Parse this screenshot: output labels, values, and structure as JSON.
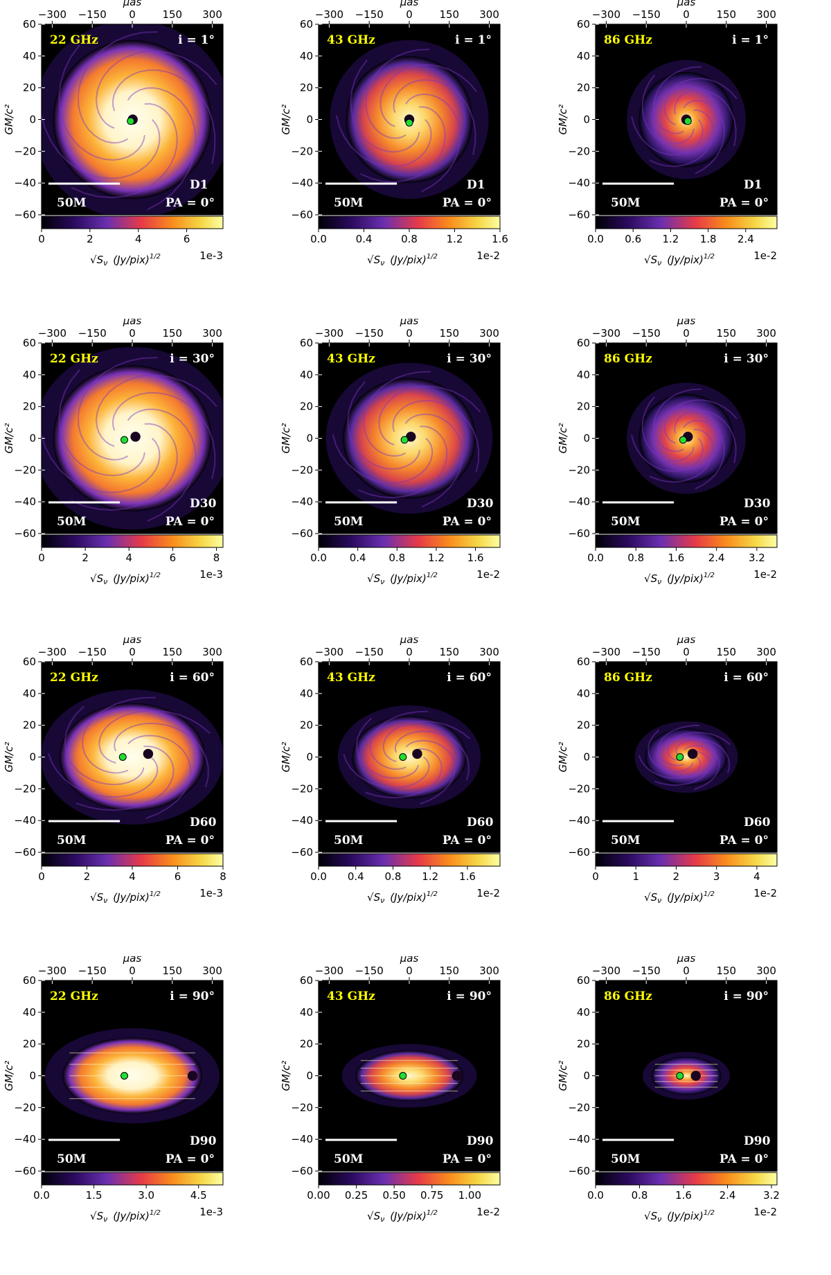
{
  "figure": {
    "top_axis_label": "μas",
    "left_axis_label": "GM/c²",
    "colorbar_label_sqrt": "√S",
    "colorbar_label_nu": "ν",
    "colorbar_label_units": "(Jy/pix)",
    "colorbar_label_exp": "1/2",
    "scale_bar_label": "50M",
    "pa_label": "PA = 0°",
    "colors": {
      "background": "#000000",
      "marker": "#22dd33",
      "freq_text": "#ffff00",
      "info_text": "#ffffff"
    }
  },
  "chart_data": [
    {
      "type": "heatmap",
      "freq": "22 GHz",
      "incl": "i = 1°",
      "model": "D1",
      "pa": "PA = 0°",
      "x_ticks": [
        "−300",
        "−150",
        "0",
        "150",
        "300"
      ],
      "x_range_uas": [
        -340,
        340
      ],
      "y_ticks": [
        "60",
        "40",
        "20",
        "0",
        "−20",
        "−40",
        "−60"
      ],
      "y_range": [
        -60,
        60
      ],
      "cbar_ticks": [
        "0",
        "2",
        "4",
        "6"
      ],
      "cbar_exp": "1e-3",
      "cbar_range": [
        0,
        7.5
      ],
      "disk": {
        "rx": 50,
        "ry": 50,
        "rot": 1
      },
      "shadow": {
        "x": 0.3,
        "y": 0
      },
      "marker": {
        "x": -1,
        "y": -1
      },
      "brightness": "high"
    },
    {
      "type": "heatmap",
      "freq": "43 GHz",
      "incl": "i = 1°",
      "model": "D1",
      "pa": "PA = 0°",
      "x_ticks": [
        "−300",
        "−150",
        "0",
        "150",
        "300"
      ],
      "x_range_uas": [
        -340,
        340
      ],
      "y_ticks": [
        "60",
        "40",
        "20",
        "0",
        "−20",
        "−40",
        "−60"
      ],
      "y_range": [
        -60,
        60
      ],
      "cbar_ticks": [
        "0.0",
        "0.4",
        "0.8",
        "1.2",
        "1.6"
      ],
      "cbar_exp": "1e-2",
      "cbar_range": [
        0,
        1.6
      ],
      "disk": {
        "rx": 40,
        "ry": 40,
        "rot": 1
      },
      "shadow": {
        "x": 0,
        "y": 0
      },
      "marker": {
        "x": 0,
        "y": -2
      },
      "brightness": "mid"
    },
    {
      "type": "heatmap",
      "freq": "86 GHz",
      "incl": "i = 1°",
      "model": "D1",
      "pa": "PA = 0°",
      "x_ticks": [
        "−300",
        "−150",
        "0",
        "150",
        "300"
      ],
      "x_range_uas": [
        -340,
        340
      ],
      "y_ticks": [
        "60",
        "40",
        "20",
        "0",
        "−20",
        "−40",
        "−60"
      ],
      "y_range": [
        -60,
        60
      ],
      "cbar_ticks": [
        "0.0",
        "0.6",
        "1.2",
        "1.8",
        "2.4"
      ],
      "cbar_exp": "1e-2",
      "cbar_range": [
        0,
        2.9
      ],
      "disk": {
        "rx": 30,
        "ry": 30,
        "rot": 1
      },
      "shadow": {
        "x": 0,
        "y": 0
      },
      "marker": {
        "x": 1,
        "y": -1
      },
      "brightness": "low"
    },
    {
      "type": "heatmap",
      "freq": "22 GHz",
      "incl": "i = 30°",
      "model": "D30",
      "pa": "PA = 0°",
      "x_ticks": [
        "−300",
        "−150",
        "0",
        "150",
        "300"
      ],
      "x_range_uas": [
        -340,
        340
      ],
      "y_ticks": [
        "60",
        "40",
        "20",
        "0",
        "−20",
        "−40",
        "−60"
      ],
      "y_range": [
        -60,
        60
      ],
      "cbar_ticks": [
        "0",
        "2",
        "4",
        "6",
        "8"
      ],
      "cbar_exp": "1e-3",
      "cbar_range": [
        0,
        8.3
      ],
      "disk": {
        "rx": 50,
        "ry": 46,
        "rot": 1
      },
      "shadow": {
        "x": 2,
        "y": 1
      },
      "marker": {
        "x": -5,
        "y": -1
      },
      "brightness": "high"
    },
    {
      "type": "heatmap",
      "freq": "43 GHz",
      "incl": "i = 30°",
      "model": "D30",
      "pa": "PA = 0°",
      "x_ticks": [
        "−300",
        "−150",
        "0",
        "150",
        "300"
      ],
      "x_range_uas": [
        -340,
        340
      ],
      "y_ticks": [
        "60",
        "40",
        "20",
        "0",
        "−20",
        "−40",
        "−60"
      ],
      "y_range": [
        -60,
        60
      ],
      "cbar_ticks": [
        "0.0",
        "0.4",
        "0.8",
        "1.2",
        "1.6"
      ],
      "cbar_exp": "1e-2",
      "cbar_range": [
        0,
        1.85
      ],
      "disk": {
        "rx": 42,
        "ry": 38,
        "rot": 1
      },
      "shadow": {
        "x": 1,
        "y": 1
      },
      "marker": {
        "x": -3,
        "y": -1
      },
      "brightness": "mid"
    },
    {
      "type": "heatmap",
      "freq": "86 GHz",
      "incl": "i = 30°",
      "model": "D30",
      "pa": "PA = 0°",
      "x_ticks": [
        "−300",
        "−150",
        "0",
        "150",
        "300"
      ],
      "x_range_uas": [
        -340,
        340
      ],
      "y_ticks": [
        "60",
        "40",
        "20",
        "0",
        "−20",
        "−40",
        "−60"
      ],
      "y_range": [
        -60,
        60
      ],
      "cbar_ticks": [
        "0.0",
        "0.8",
        "1.6",
        "2.4",
        "3.2"
      ],
      "cbar_exp": "1e-2",
      "cbar_range": [
        0,
        3.6
      ],
      "disk": {
        "rx": 30,
        "ry": 28,
        "rot": 1
      },
      "shadow": {
        "x": 1,
        "y": 1
      },
      "marker": {
        "x": -2,
        "y": -1
      },
      "brightness": "low"
    },
    {
      "type": "heatmap",
      "freq": "22 GHz",
      "incl": "i = 60°",
      "model": "D60",
      "pa": "PA = 0°",
      "x_ticks": [
        "−300",
        "−150",
        "0",
        "150",
        "300"
      ],
      "x_range_uas": [
        -340,
        340
      ],
      "y_ticks": [
        "60",
        "40",
        "20",
        "0",
        "−20",
        "−40",
        "−60"
      ],
      "y_range": [
        -60,
        60
      ],
      "cbar_ticks": [
        "0",
        "2",
        "4",
        "6",
        "8"
      ],
      "cbar_exp": "1e-3",
      "cbar_range": [
        0,
        8
      ],
      "disk": {
        "rx": 46,
        "ry": 34,
        "rot": 1
      },
      "shadow": {
        "x": 10,
        "y": 2
      },
      "marker": {
        "x": -6,
        "y": 0
      },
      "brightness": "high"
    },
    {
      "type": "heatmap",
      "freq": "43 GHz",
      "incl": "i = 60°",
      "model": "D60",
      "pa": "PA = 0°",
      "x_ticks": [
        "−300",
        "−150",
        "0",
        "150",
        "300"
      ],
      "x_range_uas": [
        -340,
        340
      ],
      "y_ticks": [
        "60",
        "40",
        "20",
        "0",
        "−20",
        "−40",
        "−60"
      ],
      "y_range": [
        -60,
        60
      ],
      "cbar_ticks": [
        "0.0",
        "0.4",
        "0.8",
        "1.2",
        "1.6"
      ],
      "cbar_exp": "1e-2",
      "cbar_range": [
        0,
        1.95
      ],
      "disk": {
        "rx": 36,
        "ry": 26,
        "rot": 1
      },
      "shadow": {
        "x": 5,
        "y": 2
      },
      "marker": {
        "x": -4,
        "y": 0
      },
      "brightness": "mid"
    },
    {
      "type": "heatmap",
      "freq": "86 GHz",
      "incl": "i = 60°",
      "model": "D60",
      "pa": "PA = 0°",
      "x_ticks": [
        "−300",
        "−150",
        "0",
        "150",
        "300"
      ],
      "x_range_uas": [
        -340,
        340
      ],
      "y_ticks": [
        "60",
        "40",
        "20",
        "0",
        "−20",
        "−40",
        "−60"
      ],
      "y_range": [
        -60,
        60
      ],
      "cbar_ticks": [
        "0",
        "1",
        "2",
        "3",
        "4"
      ],
      "cbar_exp": "1e-2",
      "cbar_range": [
        0,
        4.5
      ],
      "disk": {
        "rx": 26,
        "ry": 18,
        "rot": 1
      },
      "shadow": {
        "x": 4,
        "y": 2
      },
      "marker": {
        "x": -4,
        "y": 0
      },
      "brightness": "low"
    },
    {
      "type": "heatmap",
      "freq": "22 GHz",
      "incl": "i = 90°",
      "model": "D90",
      "pa": "PA = 0°",
      "x_ticks": [
        "−300",
        "−150",
        "0",
        "150",
        "300"
      ],
      "x_range_uas": [
        -340,
        340
      ],
      "y_ticks": [
        "60",
        "40",
        "20",
        "0",
        "−20",
        "−40",
        "−60"
      ],
      "y_range": [
        -60,
        60
      ],
      "cbar_ticks": [
        "0.0",
        "1.5",
        "3.0",
        "4.5"
      ],
      "cbar_exp": "1e-3",
      "cbar_range": [
        0,
        5.2
      ],
      "disk": {
        "rx": 44,
        "ry": 24,
        "rot": 0
      },
      "shadow": {
        "x": 38,
        "y": 0
      },
      "marker": {
        "x": -5,
        "y": 0
      },
      "brightness": "high"
    },
    {
      "type": "heatmap",
      "freq": "43 GHz",
      "incl": "i = 90°",
      "model": "D90",
      "pa": "PA = 0°",
      "x_ticks": [
        "−300",
        "−150",
        "0",
        "150",
        "300"
      ],
      "x_range_uas": [
        -340,
        340
      ],
      "y_ticks": [
        "60",
        "40",
        "20",
        "0",
        "−20",
        "−40",
        "−60"
      ],
      "y_range": [
        -60,
        60
      ],
      "cbar_ticks": [
        "0.00",
        "0.25",
        "0.50",
        "0.75",
        "1.00"
      ],
      "cbar_exp": "1e-2",
      "cbar_range": [
        0,
        1.2
      ],
      "disk": {
        "rx": 34,
        "ry": 16,
        "rot": 0
      },
      "shadow": {
        "x": 30,
        "y": 0
      },
      "marker": {
        "x": -4,
        "y": 0
      },
      "brightness": "mid"
    },
    {
      "type": "heatmap",
      "freq": "86 GHz",
      "incl": "i = 90°",
      "model": "D90",
      "pa": "PA = 0°",
      "x_ticks": [
        "−300",
        "−150",
        "0",
        "150",
        "300"
      ],
      "x_range_uas": [
        -340,
        340
      ],
      "y_ticks": [
        "60",
        "40",
        "20",
        "0",
        "−20",
        "−40",
        "−60"
      ],
      "y_range": [
        -60,
        60
      ],
      "cbar_ticks": [
        "0.0",
        "0.8",
        "1.6",
        "2.4",
        "3.2"
      ],
      "cbar_exp": "1e-2",
      "cbar_range": [
        0,
        3.3
      ],
      "disk": {
        "rx": 22,
        "ry": 12,
        "rot": 0
      },
      "shadow": {
        "x": 6,
        "y": 0
      },
      "marker": {
        "x": -4,
        "y": 0
      },
      "brightness": "low"
    }
  ]
}
